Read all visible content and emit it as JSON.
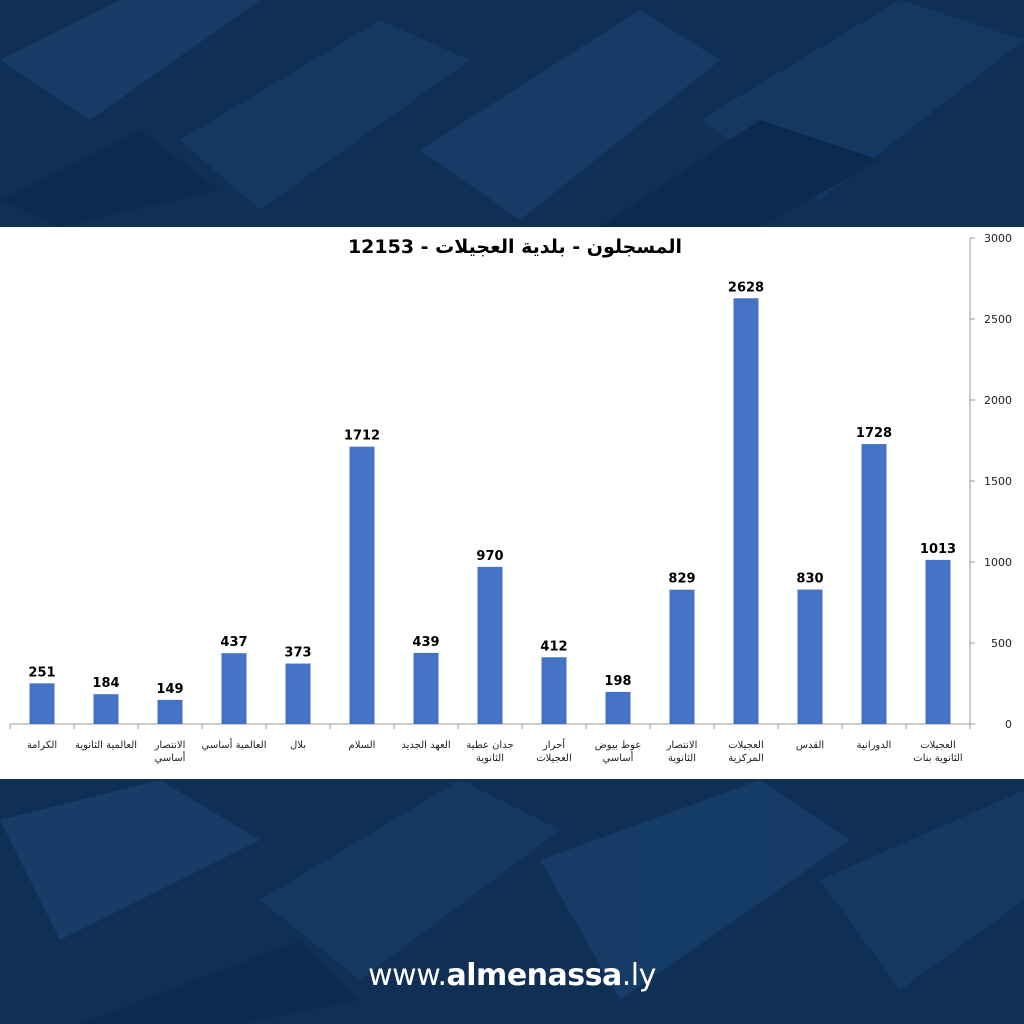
{
  "colors": {
    "background": "#0f2f55",
    "bar": "#4472c4",
    "panel": "#ffffff"
  },
  "site": {
    "prefix": "www.",
    "brand": "almenassa",
    "suffix": ".ly"
  },
  "chart_data": {
    "type": "bar",
    "title": "المسجلون - بلدية العجيلات - 12153",
    "xlabel": "",
    "ylabel": "",
    "ylim": [
      0,
      3000
    ],
    "yticks": [
      0,
      500,
      1000,
      1500,
      2000,
      2500,
      3000
    ],
    "y_axis_side": "right",
    "grid": false,
    "legend": "none",
    "categories": [
      [
        "الكرامة"
      ],
      [
        "العالمية الثانوية"
      ],
      [
        "الانتصار",
        "أساسي"
      ],
      [
        "العالمية أساسي"
      ],
      [
        "بلال"
      ],
      [
        "السلام"
      ],
      [
        "العهد الجديد"
      ],
      [
        "جدان عطية",
        "الثانوية"
      ],
      [
        "أحرار",
        "العجيلات"
      ],
      [
        "عوط بيوض",
        "أساسي"
      ],
      [
        "الانتصار",
        "الثانوية"
      ],
      [
        "العجيلات",
        "المركزية"
      ],
      [
        "القدس"
      ],
      [
        "الدورانية"
      ],
      [
        "العجيلات",
        "الثانوية بنات"
      ]
    ],
    "values": [
      251,
      184,
      149,
      437,
      373,
      1712,
      439,
      970,
      412,
      198,
      829,
      2628,
      830,
      1728,
      1013
    ]
  }
}
